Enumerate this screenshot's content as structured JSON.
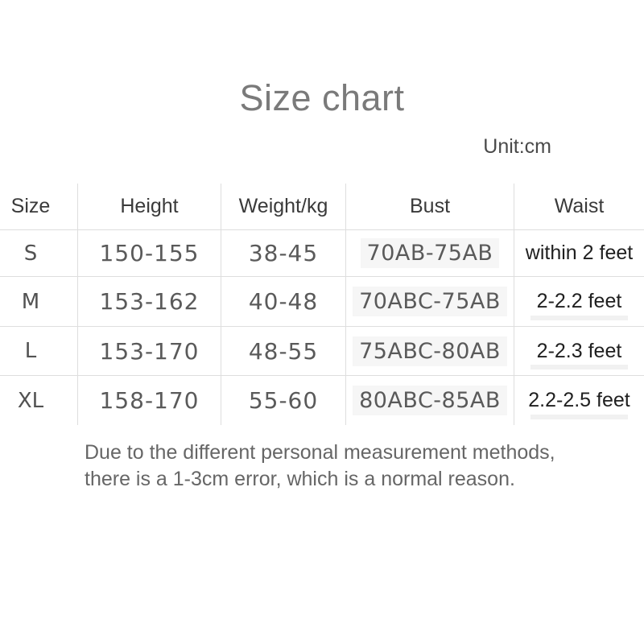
{
  "page": {
    "title": "Size chart",
    "unit_label": "Unit:cm"
  },
  "chart_data": {
    "type": "table",
    "title": "Size chart",
    "unit": "cm",
    "columns": [
      "Size",
      "Height",
      "Weight/kg",
      "Bust",
      "Waist"
    ],
    "rows": [
      [
        "S",
        "150-155",
        "38-45",
        "70AB-75AB",
        "within 2 feet"
      ],
      [
        "M",
        "153-162",
        "40-48",
        "70ABC-75AB",
        "2-2.2 feet"
      ],
      [
        "L",
        "153-170",
        "48-55",
        "75ABC-80AB",
        "2-2.3 feet"
      ],
      [
        "XL",
        "158-170",
        "55-60",
        "80ABC-85AB",
        "2.2-2.5 feet"
      ]
    ],
    "footnote_lines": [
      "Due to the different personal measurement methods,",
      "there is a 1-3cm error, which is a normal reason."
    ]
  },
  "colors": {
    "background": "#ffffff",
    "title_text": "#7a7a7a",
    "unit_text": "#4a4a4a",
    "header_text": "#3a3a3a",
    "value_text": "#5a5a5a",
    "size_text": "#525252",
    "waist_text": "#1f1f1f",
    "footnote_text": "#666666",
    "grid_line": "#dedede",
    "bust_highlight": "#f6f6f6"
  }
}
